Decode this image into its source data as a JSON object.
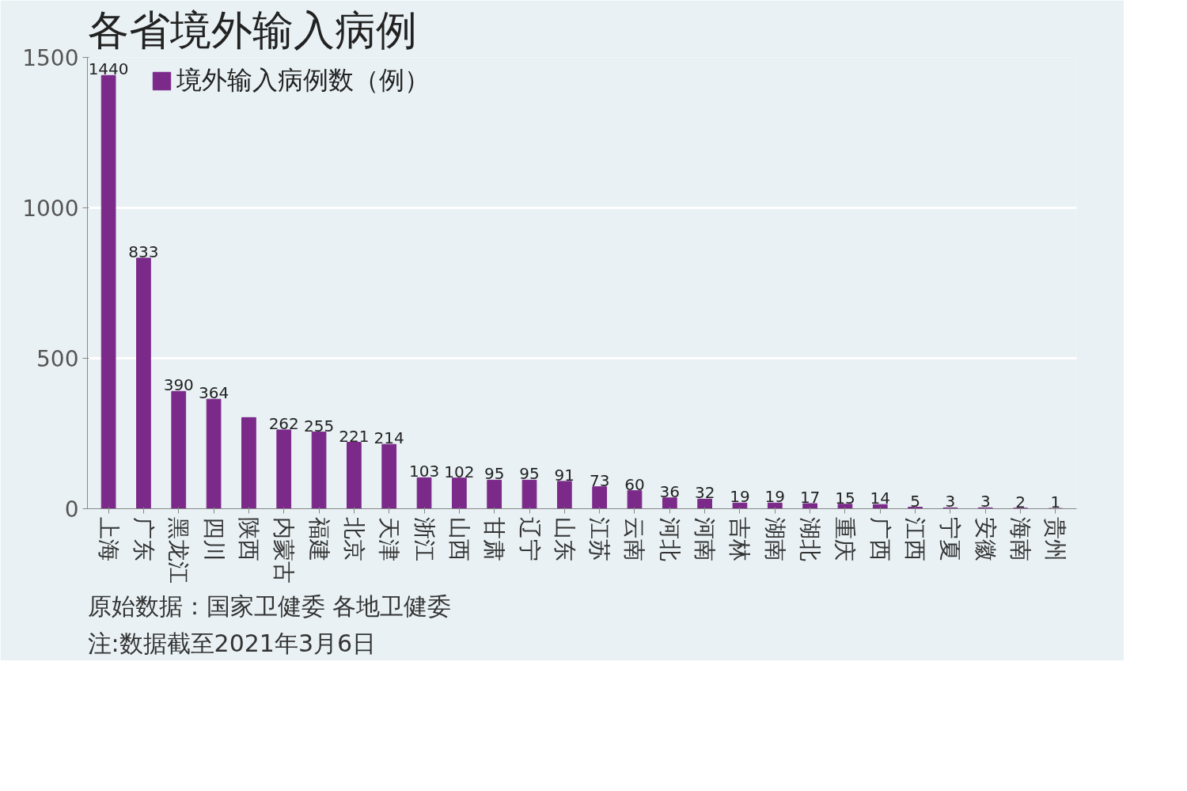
{
  "chart_data": {
    "type": "bar",
    "title": "各省境外输入病例",
    "categories": [
      "上海",
      "广东",
      "黑龙江",
      "四川",
      "陕西",
      "内蒙古",
      "福建",
      "北京",
      "天津",
      "浙江",
      "山西",
      "甘肃",
      "辽宁",
      "山东",
      "江苏",
      "云南",
      "河北",
      "河南",
      "吉林",
      "湖南",
      "湖北",
      "重庆",
      "广西",
      "江西",
      "宁夏",
      "安徽",
      "海南",
      "贵州"
    ],
    "series": [
      {
        "name": "境外输入病例数（例）",
        "color": "#7b2a8a",
        "values": [
          1440,
          833,
          390,
          364,
          303,
          262,
          255,
          221,
          214,
          103,
          102,
          95,
          95,
          91,
          73,
          60,
          36,
          32,
          19,
          19,
          17,
          15,
          14,
          5,
          3,
          3,
          2,
          1
        ],
        "value_labels": [
          "1440",
          "833",
          "390",
          "364",
          null,
          "262",
          "255",
          "221",
          "214",
          "103",
          "102",
          "95",
          "95",
          "91",
          "73",
          "60",
          "36",
          "32",
          "19",
          "19",
          "17",
          "15",
          "14",
          "5",
          "3",
          "3",
          "2",
          "1"
        ]
      }
    ],
    "ylim": [
      0,
      1500
    ],
    "yticks": [
      0,
      500,
      1000,
      1500
    ],
    "grid": "y",
    "legend": "top left",
    "annotations": [
      "原始数据：国家卫健委 各地卫健委",
      "注:数据截至2021年3月6日"
    ]
  }
}
